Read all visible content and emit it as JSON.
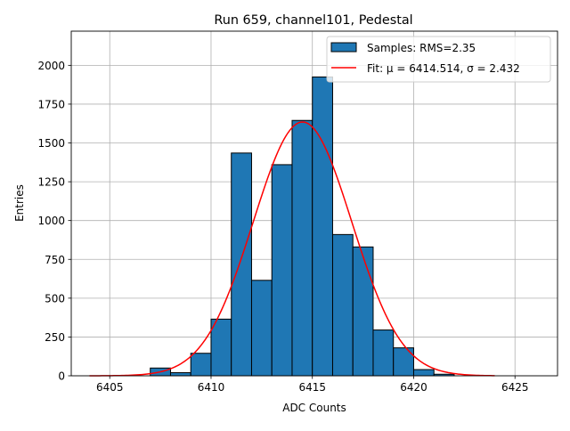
{
  "chart_data": {
    "type": "bar",
    "title": "Run 659, channel101, Pedestal",
    "xlabel": "ADC Counts",
    "ylabel": "Entries",
    "xlim": [
      6403.1,
      6427.1
    ],
    "ylim": [
      0,
      2220
    ],
    "xticks": [
      6405,
      6410,
      6415,
      6420,
      6425
    ],
    "yticks": [
      0,
      250,
      500,
      750,
      1000,
      1250,
      1500,
      1750,
      2000
    ],
    "grid": true,
    "legend_location": "top-right",
    "histogram": {
      "name": "Samples: RMS=2.35",
      "bin_width": 1,
      "bin_centers": [
        6407.5,
        6408.5,
        6409.5,
        6410.5,
        6411.5,
        6412.5,
        6413.5,
        6414.5,
        6415.5,
        6416.5,
        6417.5,
        6418.5,
        6419.5,
        6420.5,
        6421.5
      ],
      "values": [
        50,
        20,
        145,
        365,
        1435,
        615,
        1360,
        1645,
        1925,
        910,
        830,
        295,
        180,
        40,
        10
      ],
      "color": "#1f77b4",
      "edge_color": "#000000"
    },
    "fit": {
      "name": "Fit: μ = 6414.514, σ = 2.432",
      "mu": 6414.514,
      "sigma": 2.432,
      "amplitude": 1635,
      "x_range": [
        6404,
        6424
      ],
      "color": "#ff0000"
    }
  }
}
